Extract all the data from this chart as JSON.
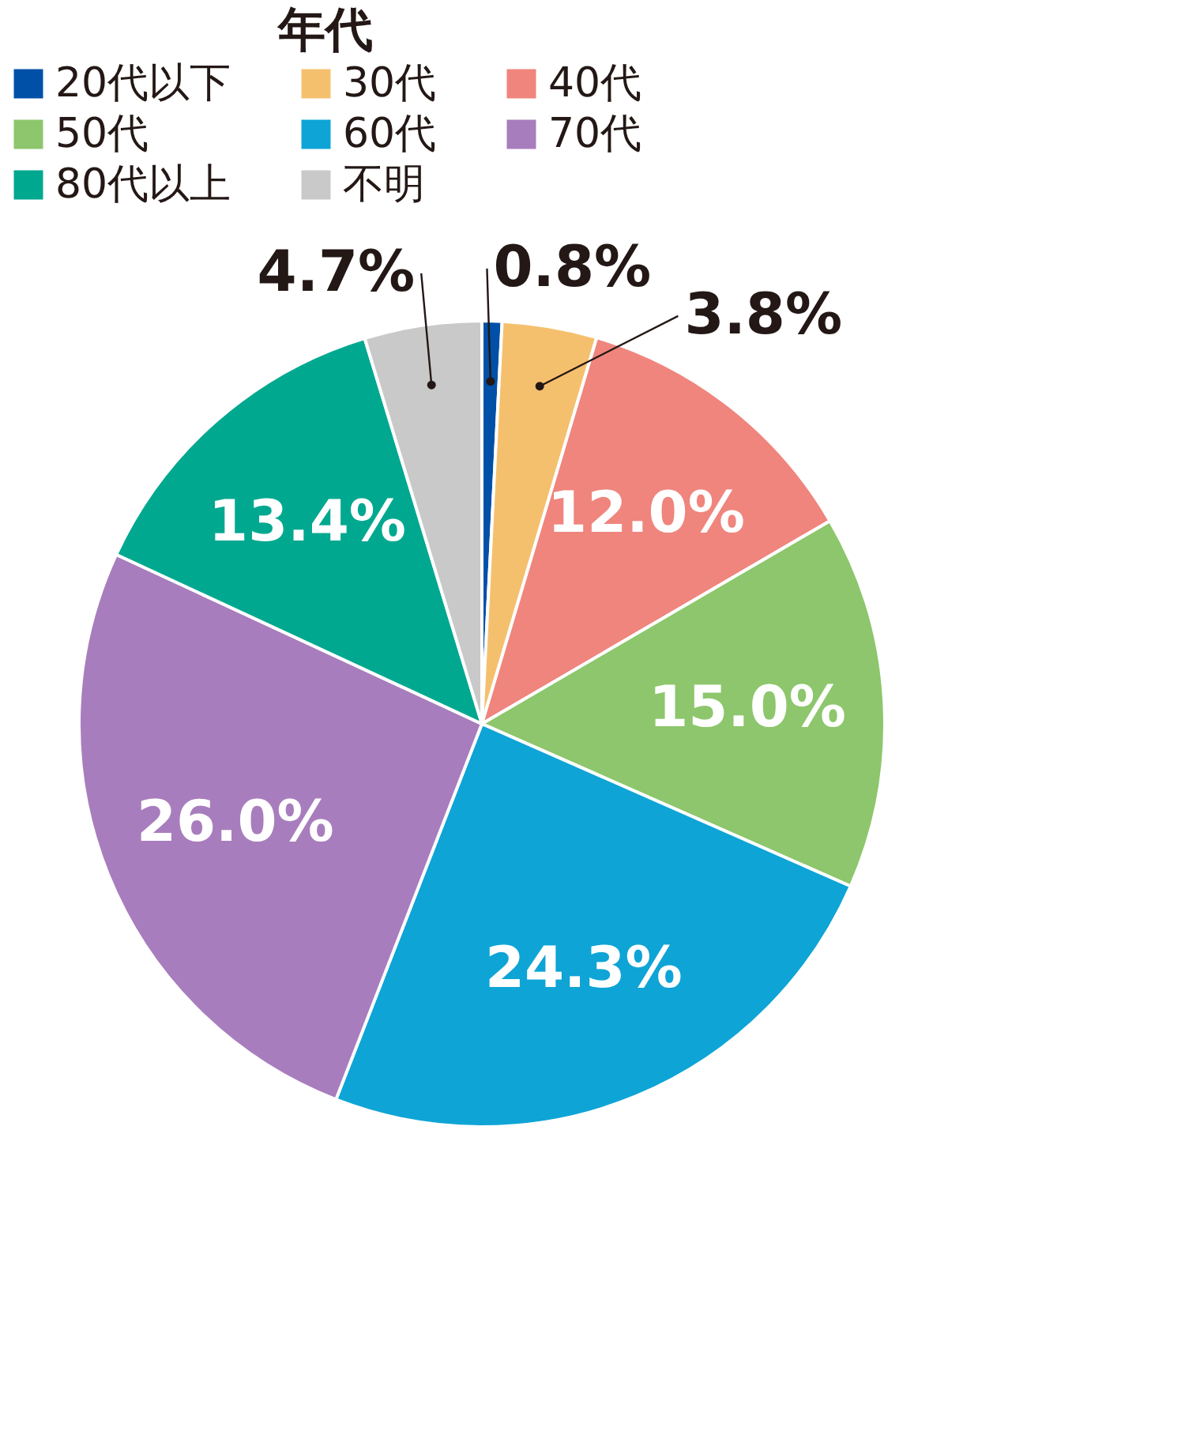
{
  "chart_data": {
    "type": "pie",
    "legend_title": "年代",
    "legend": "top",
    "categories": [
      "20代以下",
      "30代",
      "40代",
      "50代",
      "60代",
      "70代",
      "80代以上",
      "不明"
    ],
    "values": [
      0.8,
      3.8,
      12.0,
      15.0,
      24.3,
      26.0,
      13.4,
      4.7
    ],
    "colors": [
      "#0050a8",
      "#f5c06e",
      "#ef857d",
      "#8dc66c",
      "#0ea4d6",
      "#a87dbd",
      "#00a890",
      "#c8c9c8"
    ],
    "value_labels": [
      "0.8%",
      "3.8%",
      "12.0%",
      "15.0%",
      "24.3%",
      "26.0%",
      "13.4%",
      "4.7%"
    ]
  }
}
